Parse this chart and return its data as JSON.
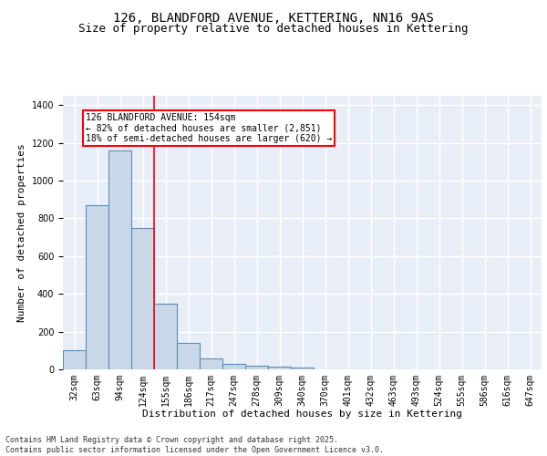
{
  "title_line1": "126, BLANDFORD AVENUE, KETTERING, NN16 9AS",
  "title_line2": "Size of property relative to detached houses in Kettering",
  "xlabel": "Distribution of detached houses by size in Kettering",
  "ylabel": "Number of detached properties",
  "categories": [
    "32sqm",
    "63sqm",
    "94sqm",
    "124sqm",
    "155sqm",
    "186sqm",
    "217sqm",
    "247sqm",
    "278sqm",
    "309sqm",
    "340sqm",
    "370sqm",
    "401sqm",
    "432sqm",
    "463sqm",
    "493sqm",
    "524sqm",
    "555sqm",
    "586sqm",
    "616sqm",
    "647sqm"
  ],
  "values": [
    100,
    870,
    1160,
    750,
    350,
    140,
    60,
    30,
    20,
    15,
    10,
    0,
    0,
    0,
    0,
    0,
    0,
    0,
    0,
    0,
    0
  ],
  "bar_color": "#c8d8e8",
  "bar_edge_color": "#5b8db8",
  "bar_edge_width": 0.8,
  "red_line_x": 3.5,
  "annotation_text": "126 BLANDFORD AVENUE: 154sqm\n← 82% of detached houses are smaller (2,851)\n18% of semi-detached houses are larger (620) →",
  "annotation_box_color": "white",
  "annotation_box_edge": "red",
  "ylim": [
    0,
    1450
  ],
  "yticks": [
    0,
    200,
    400,
    600,
    800,
    1000,
    1200,
    1400
  ],
  "background_color": "#e8eef8",
  "grid_color": "white",
  "footer_line1": "Contains HM Land Registry data © Crown copyright and database right 2025.",
  "footer_line2": "Contains public sector information licensed under the Open Government Licence v3.0.",
  "title_fontsize": 10,
  "subtitle_fontsize": 9,
  "axis_label_fontsize": 8,
  "tick_fontsize": 7,
  "annotation_fontsize": 7,
  "footer_fontsize": 6
}
